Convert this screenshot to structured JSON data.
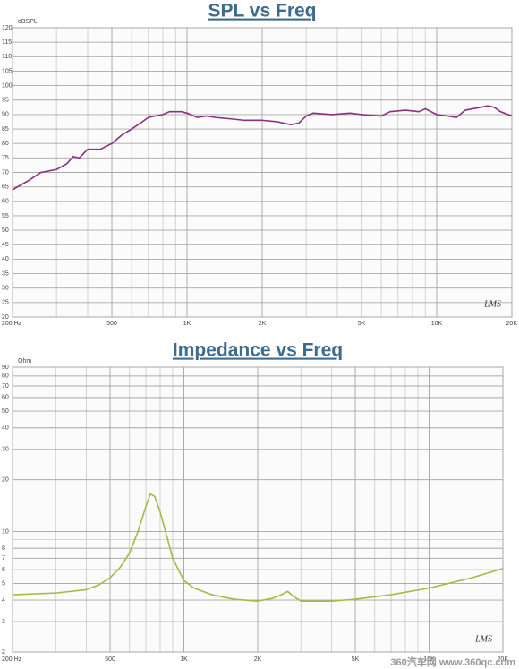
{
  "chart_data": [
    {
      "type": "line",
      "title": "SPL vs Freq",
      "ylabel": "dBSPL",
      "annotation": "LMS",
      "xscale": "log",
      "yscale": "linear",
      "grid": true,
      "xlim": [
        200,
        20000
      ],
      "xticks": [
        {
          "value": 200,
          "label": "200 Hz"
        },
        500,
        {
          "value": 1000,
          "label": "1K"
        },
        {
          "value": 2000,
          "label": "2K"
        },
        {
          "value": 5000,
          "label": "5K"
        },
        {
          "value": 10000,
          "label": "10K"
        },
        {
          "value": 20000,
          "label": "20K"
        }
      ],
      "ylim": [
        20,
        120
      ],
      "yticks": [
        20,
        25,
        30,
        35,
        40,
        45,
        50,
        55,
        60,
        65,
        70,
        75,
        80,
        85,
        90,
        95,
        100,
        105,
        110,
        115,
        120
      ],
      "x": [
        200,
        230,
        260,
        300,
        330,
        350,
        370,
        400,
        450,
        500,
        550,
        600,
        650,
        700,
        800,
        850,
        950,
        1000,
        1100,
        1200,
        1300,
        1500,
        1700,
        2000,
        2300,
        2600,
        2800,
        3000,
        3200,
        3800,
        4500,
        5000,
        6000,
        6500,
        7500,
        8500,
        9000,
        10000,
        11000,
        12000,
        13000,
        15000,
        16000,
        17000,
        18000,
        20000
      ],
      "series": [
        {
          "color": "#8b2f7e",
          "values": [
            64,
            67,
            70,
            71,
            73,
            75.5,
            75,
            78,
            78,
            80,
            83,
            85,
            87,
            89,
            90,
            91,
            91,
            90.5,
            89,
            89.5,
            89,
            88.5,
            88,
            88,
            87.5,
            86.5,
            87,
            89.5,
            90.5,
            90,
            90.5,
            90,
            89.5,
            91,
            91.5,
            91,
            92,
            90,
            89.5,
            89,
            91.5,
            92.5,
            93,
            92.5,
            91,
            89.5
          ]
        }
      ]
    },
    {
      "type": "line",
      "title": "Impedance vs Freq",
      "ylabel": "Ohm",
      "annotation": "LMS",
      "watermark": "360汽车网 www.360qc.com",
      "xscale": "log",
      "yscale": "log",
      "grid": true,
      "xlim": [
        200,
        20000
      ],
      "xticks": [
        {
          "value": 200,
          "label": "200 Hz"
        },
        500,
        {
          "value": 1000,
          "label": "1K"
        },
        {
          "value": 2000,
          "label": "2K"
        },
        {
          "value": 5000,
          "label": "5K"
        },
        {
          "value": 10000,
          "label": "10K"
        },
        {
          "value": 20000,
          "label": "20K"
        }
      ],
      "ylim": [
        2,
        90
      ],
      "yticks": [
        2,
        3,
        4,
        5,
        6,
        7,
        8,
        10,
        20,
        30,
        40,
        50,
        60,
        70,
        80,
        90
      ],
      "x": [
        200,
        300,
        400,
        450,
        500,
        550,
        600,
        650,
        700,
        730,
        760,
        800,
        850,
        900,
        1000,
        1100,
        1300,
        1600,
        2000,
        2300,
        2500,
        2650,
        2800,
        3000,
        4000,
        5000,
        7000,
        10000,
        15000,
        20000
      ],
      "series": [
        {
          "color": "#a9b845",
          "values": [
            4.3,
            4.4,
            4.6,
            4.9,
            5.4,
            6.2,
            7.5,
            10,
            14,
            16.5,
            16,
            13,
            9.5,
            7,
            5.2,
            4.7,
            4.3,
            4.05,
            3.95,
            4.1,
            4.3,
            4.5,
            4.2,
            3.95,
            3.95,
            4.05,
            4.3,
            4.7,
            5.4,
            6.1
          ]
        }
      ]
    }
  ]
}
